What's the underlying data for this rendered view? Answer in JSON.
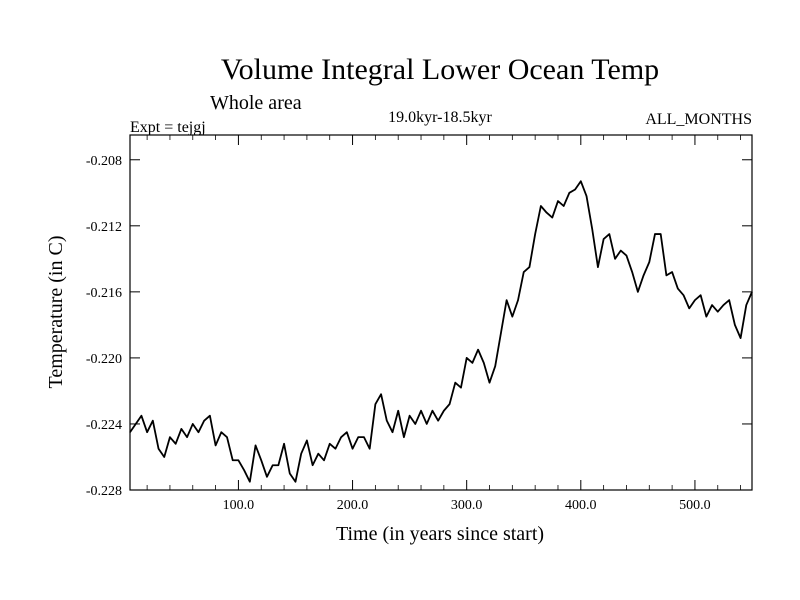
{
  "chart_data": {
    "type": "line",
    "title": "Volume Integral Lower Ocean Temp",
    "subtitle": "Whole area",
    "left_label": "Expt = tejgj",
    "center_label": "19.0kyr-18.5kyr",
    "right_label": "ALL_MONTHS",
    "xlabel": "Time (in years since start)",
    "ylabel": "Temperature (in C)",
    "xlim": [
      5,
      550
    ],
    "ylim": [
      -0.228,
      -0.2065
    ],
    "x_ticks": [
      100,
      200,
      300,
      400,
      500
    ],
    "x_tick_labels": [
      "100.0",
      "200.0",
      "300.0",
      "400.0",
      "500.0"
    ],
    "y_ticks": [
      -0.208,
      -0.212,
      -0.216,
      -0.22,
      -0.224,
      -0.228
    ],
    "y_tick_labels": [
      "-0.208",
      "-0.212",
      "-0.216",
      "-0.220",
      "-0.224",
      "-0.228"
    ],
    "grid": false,
    "series": [
      {
        "name": "Volume Integral Lower Ocean Temp",
        "x": [
          5,
          10,
          15,
          20,
          25,
          30,
          35,
          40,
          45,
          50,
          55,
          60,
          65,
          70,
          75,
          80,
          85,
          90,
          95,
          100,
          105,
          110,
          115,
          120,
          125,
          130,
          135,
          140,
          145,
          150,
          155,
          160,
          165,
          170,
          175,
          180,
          185,
          190,
          195,
          200,
          205,
          210,
          215,
          220,
          225,
          230,
          235,
          240,
          245,
          250,
          255,
          260,
          265,
          270,
          275,
          280,
          285,
          290,
          295,
          300,
          305,
          310,
          315,
          320,
          325,
          330,
          335,
          340,
          345,
          350,
          355,
          360,
          365,
          370,
          375,
          380,
          385,
          390,
          395,
          400,
          405,
          410,
          415,
          420,
          425,
          430,
          435,
          440,
          445,
          450,
          455,
          460,
          465,
          470,
          475,
          480,
          485,
          490,
          495,
          500,
          505,
          510,
          515,
          520,
          525,
          530,
          535,
          540,
          545,
          550
        ],
        "values": [
          -0.2245,
          -0.224,
          -0.2235,
          -0.2245,
          -0.2238,
          -0.2255,
          -0.226,
          -0.2248,
          -0.2252,
          -0.2243,
          -0.2248,
          -0.224,
          -0.2245,
          -0.2238,
          -0.2235,
          -0.2253,
          -0.2245,
          -0.2248,
          -0.2262,
          -0.2262,
          -0.2268,
          -0.2275,
          -0.2253,
          -0.2262,
          -0.2272,
          -0.2265,
          -0.2265,
          -0.2252,
          -0.227,
          -0.2275,
          -0.2258,
          -0.225,
          -0.2265,
          -0.2258,
          -0.2262,
          -0.2252,
          -0.2255,
          -0.2248,
          -0.2245,
          -0.2255,
          -0.2248,
          -0.2248,
          -0.2255,
          -0.2228,
          -0.2222,
          -0.2238,
          -0.2245,
          -0.2232,
          -0.2248,
          -0.2235,
          -0.224,
          -0.2232,
          -0.224,
          -0.2232,
          -0.2238,
          -0.2232,
          -0.2228,
          -0.2215,
          -0.2218,
          -0.22,
          -0.2203,
          -0.2195,
          -0.2203,
          -0.2215,
          -0.2205,
          -0.2185,
          -0.2165,
          -0.2175,
          -0.2165,
          -0.2148,
          -0.2145,
          -0.2125,
          -0.2108,
          -0.2112,
          -0.2115,
          -0.2105,
          -0.2108,
          -0.21,
          -0.2098,
          -0.2093,
          -0.2102,
          -0.2122,
          -0.2145,
          -0.2128,
          -0.2125,
          -0.214,
          -0.2135,
          -0.2138,
          -0.2148,
          -0.216,
          -0.215,
          -0.2142,
          -0.2125,
          -0.2125,
          -0.215,
          -0.2148,
          -0.2158,
          -0.2162,
          -0.217,
          -0.2165,
          -0.2162,
          -0.2175,
          -0.2168,
          -0.2172,
          -0.2168,
          -0.2165,
          -0.218,
          -0.2188,
          -0.2168,
          -0.216
        ]
      }
    ]
  }
}
